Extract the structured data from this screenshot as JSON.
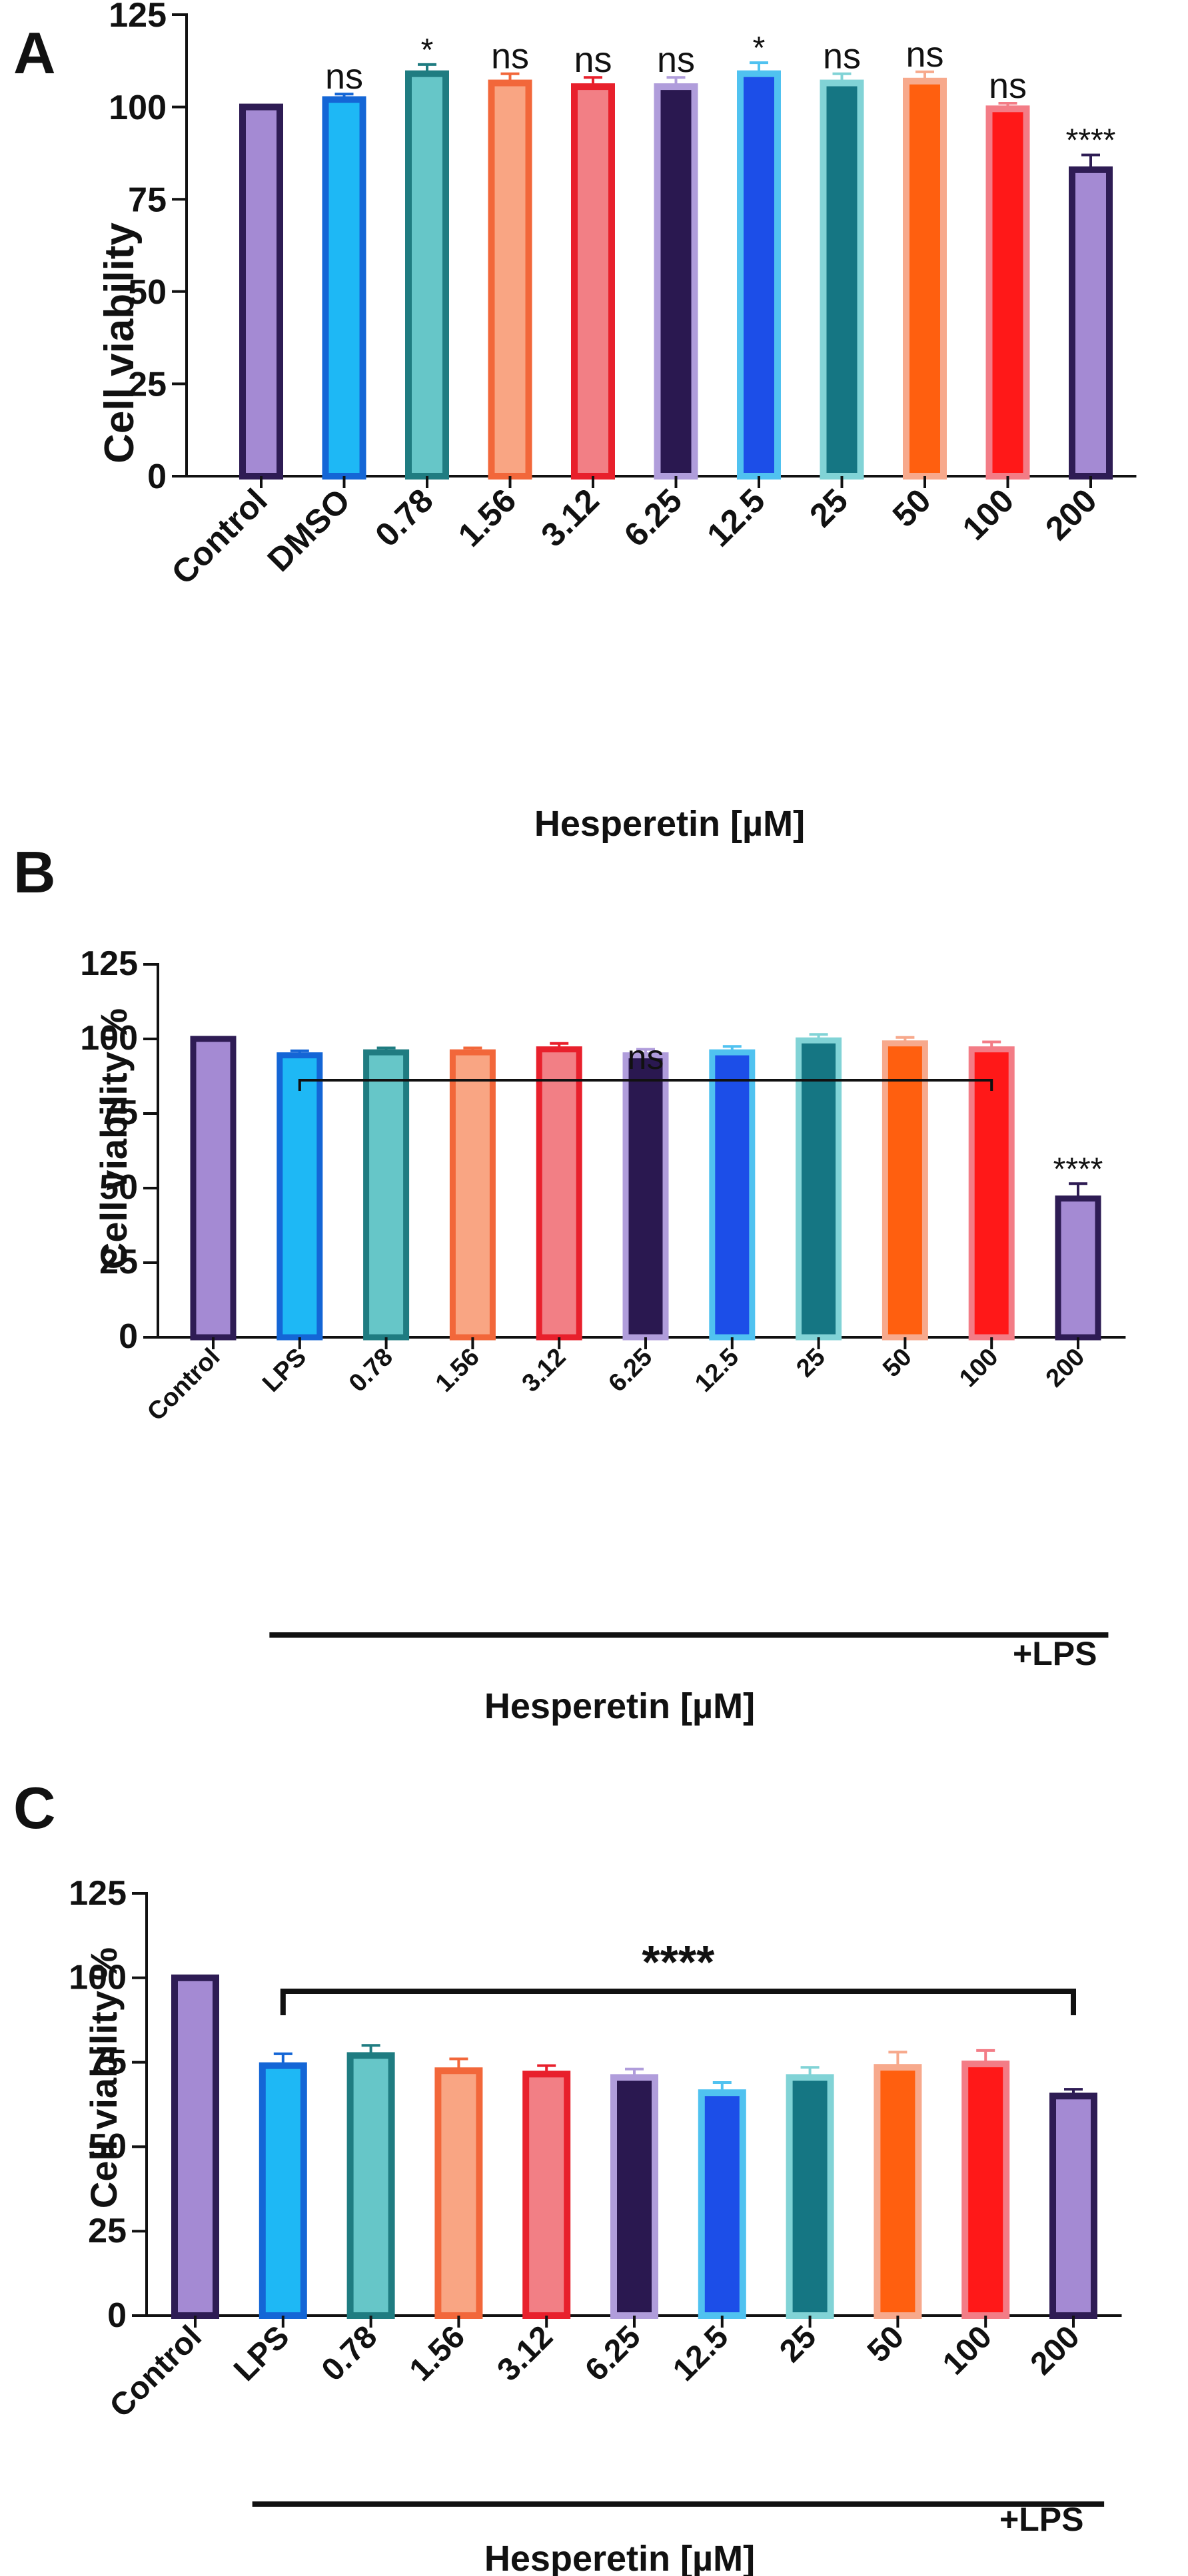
{
  "panels": [
    {
      "id": "A",
      "letter": "A",
      "ylabel": "Cell viability",
      "xtitle": "Hesperetin [µM]",
      "lps_label": "",
      "ymax": 125,
      "yticks": [
        "0",
        "25",
        "50",
        "75",
        "100",
        "125"
      ]
    },
    {
      "id": "B",
      "letter": "B",
      "ylabel": "Cell viability %",
      "xtitle": "Hesperetin [µM]",
      "lps_label": "+LPS",
      "bracket_label": "ns",
      "ymax": 125,
      "yticks": [
        "0",
        "25",
        "50",
        "75",
        "100",
        "125"
      ]
    },
    {
      "id": "C",
      "letter": "C",
      "ylabel": "Cell viability %",
      "xtitle": "Hesperetin [µM]",
      "lps_label": "+LPS",
      "bracket_label": "****",
      "ymax": 125,
      "yticks": [
        "0",
        "25",
        "50",
        "75",
        "100",
        "125"
      ]
    }
  ],
  "chart_data": [
    {
      "type": "bar",
      "panel": "A",
      "ylabel": "Cell viability",
      "xlabel": "Hesperetin [µM]",
      "ylim": [
        0,
        125
      ],
      "categories": [
        "Control",
        "DMSO",
        "0.78",
        "1.56",
        "3.12",
        "6.25",
        "12.5",
        "25",
        "50",
        "100",
        "200"
      ],
      "values": [
        100,
        102,
        109,
        106.5,
        105.5,
        105.5,
        109,
        106.5,
        107,
        99.5,
        83
      ],
      "errors": [
        0,
        1.5,
        2.5,
        2.5,
        2.5,
        2.5,
        3,
        2.5,
        2.5,
        1.5,
        4
      ],
      "significance": [
        "",
        "ns",
        "*",
        "ns",
        "ns",
        "ns",
        "*",
        "ns",
        "ns",
        "ns",
        "****"
      ],
      "fill_colors": [
        "#a48ad3",
        "#1eb8f5",
        "#66c6c8",
        "#f9a583",
        "#f27f85",
        "#2a1850",
        "#1c4ee8",
        "#157683",
        "#ff5f0f",
        "#ff1818",
        "#a48ad3"
      ],
      "edge_colors": [
        "#2e1c54",
        "#1466d6",
        "#1f7c81",
        "#f2673a",
        "#e8202c",
        "#b09ddb",
        "#50c2f0",
        "#81d3d6",
        "#f7a98c",
        "#f37c86",
        "#2e1c54"
      ]
    },
    {
      "type": "bar",
      "panel": "B",
      "ylabel": "Cell viability %",
      "xlabel": "Hesperetin [µM]",
      "ylim": [
        0,
        125
      ],
      "categories": [
        "Control",
        "LPS",
        "0.78",
        "1.56",
        "3.12",
        "6.25",
        "12.5",
        "25",
        "50",
        "100",
        "200"
      ],
      "values": [
        100,
        94.5,
        95.5,
        95.5,
        96.5,
        94.5,
        95.5,
        99.5,
        98.5,
        96.5,
        46.5
      ],
      "errors": [
        0,
        1.5,
        1.5,
        1.5,
        2,
        2,
        2,
        2,
        2,
        2.5,
        5
      ],
      "significance": [
        "",
        "",
        "",
        "",
        "",
        "",
        "",
        "",
        "",
        "",
        "****"
      ],
      "fill_colors": [
        "#a48ad3",
        "#1eb8f5",
        "#66c6c8",
        "#f9a583",
        "#f27f85",
        "#2a1850",
        "#1c4ee8",
        "#157683",
        "#ff5f0f",
        "#ff1818",
        "#a48ad3"
      ],
      "edge_colors": [
        "#2e1c54",
        "#1466d6",
        "#1f7c81",
        "#f2673a",
        "#e8202c",
        "#b09ddb",
        "#50c2f0",
        "#81d3d6",
        "#f7a98c",
        "#f37c86",
        "#2e1c54"
      ],
      "bracket": {
        "from": "LPS",
        "to": "100",
        "label": "ns"
      },
      "group_line": {
        "from": "LPS",
        "to": "200",
        "label": "+LPS"
      }
    },
    {
      "type": "bar",
      "panel": "C",
      "ylabel": "Cell viability %",
      "xlabel": "Hesperetin [µM]",
      "ylim": [
        0,
        125
      ],
      "categories": [
        "Control",
        "LPS",
        "0.78",
        "1.56",
        "3.12",
        "6.25",
        "12.5",
        "25",
        "50",
        "100",
        "200"
      ],
      "values": [
        100,
        74,
        77,
        72.5,
        71.5,
        70.5,
        66,
        70.5,
        73.5,
        74.5,
        65
      ],
      "errors": [
        0,
        3.5,
        3,
        3.5,
        2.5,
        2.5,
        3,
        3,
        4.5,
        4,
        2
      ],
      "significance": [
        "",
        "",
        "",
        "",
        "",
        "",
        "",
        "",
        "",
        "",
        ""
      ],
      "fill_colors": [
        "#a48ad3",
        "#1eb8f5",
        "#66c6c8",
        "#f9a583",
        "#f27f85",
        "#2a1850",
        "#1c4ee8",
        "#157683",
        "#ff5f0f",
        "#ff1818",
        "#a48ad3"
      ],
      "edge_colors": [
        "#2e1c54",
        "#1466d6",
        "#1f7c81",
        "#f2673a",
        "#e8202c",
        "#b09ddb",
        "#50c2f0",
        "#81d3d6",
        "#f7a98c",
        "#f37c86",
        "#2e1c54"
      ],
      "bracket": {
        "from": "LPS",
        "to": "200",
        "label": "****"
      },
      "group_line": {
        "from": "LPS",
        "to": "200",
        "label": "+LPS"
      }
    }
  ]
}
